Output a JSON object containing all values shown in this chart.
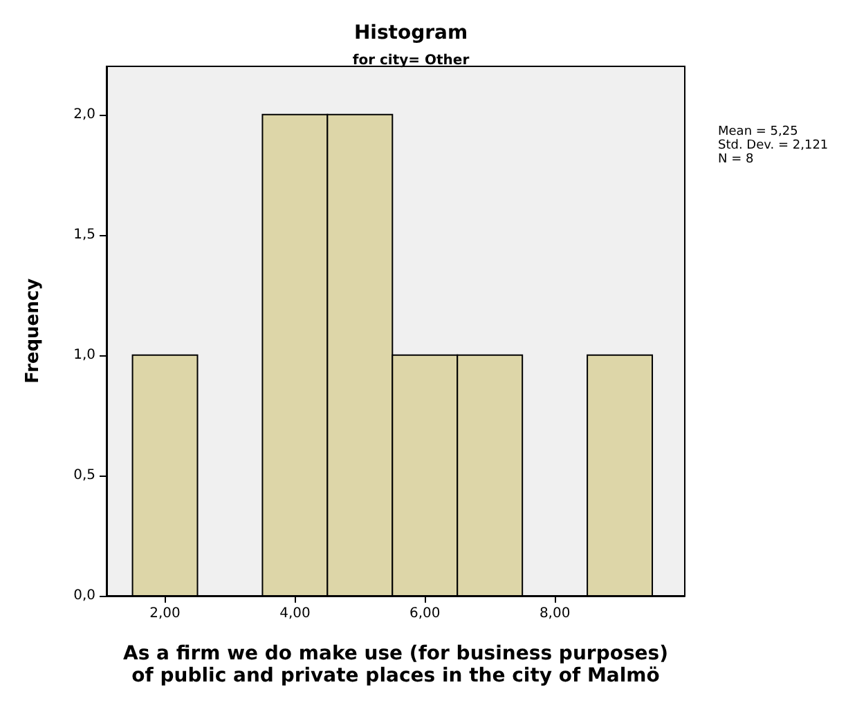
{
  "chart_data": {
    "type": "histogram",
    "title": "Histogram",
    "subtitle": "for city= Other",
    "xlabel": "As a firm we do make use (for business purposes)\nof public and private places in the city of Malmö",
    "ylabel": "Frequency",
    "bins": [
      1.5,
      2.5,
      3.5,
      4.5,
      5.5,
      6.5,
      7.5,
      8.5,
      9.5
    ],
    "values": [
      1,
      0,
      2,
      2,
      1,
      1,
      0,
      1
    ],
    "color": "#ddd6a8",
    "xlim": [
      1.1,
      10
    ],
    "xticks": [
      {
        "value": 2,
        "label": "2,00"
      },
      {
        "value": 4,
        "label": "4,00"
      },
      {
        "value": 6,
        "label": "6,00"
      },
      {
        "value": 8,
        "label": "8,00"
      }
    ],
    "ylim": [
      0,
      2.2
    ],
    "yticks": [
      {
        "value": 0,
        "label": "0,0"
      },
      {
        "value": 0.5,
        "label": "0,5"
      },
      {
        "value": 1,
        "label": "1,0"
      },
      {
        "value": 1.5,
        "label": "1,5"
      },
      {
        "value": 2,
        "label": "2,0"
      }
    ],
    "annotations": [
      "Mean = 5,25",
      "Std. Dev. = 2,121",
      "N = 8"
    ],
    "grid": false
  }
}
